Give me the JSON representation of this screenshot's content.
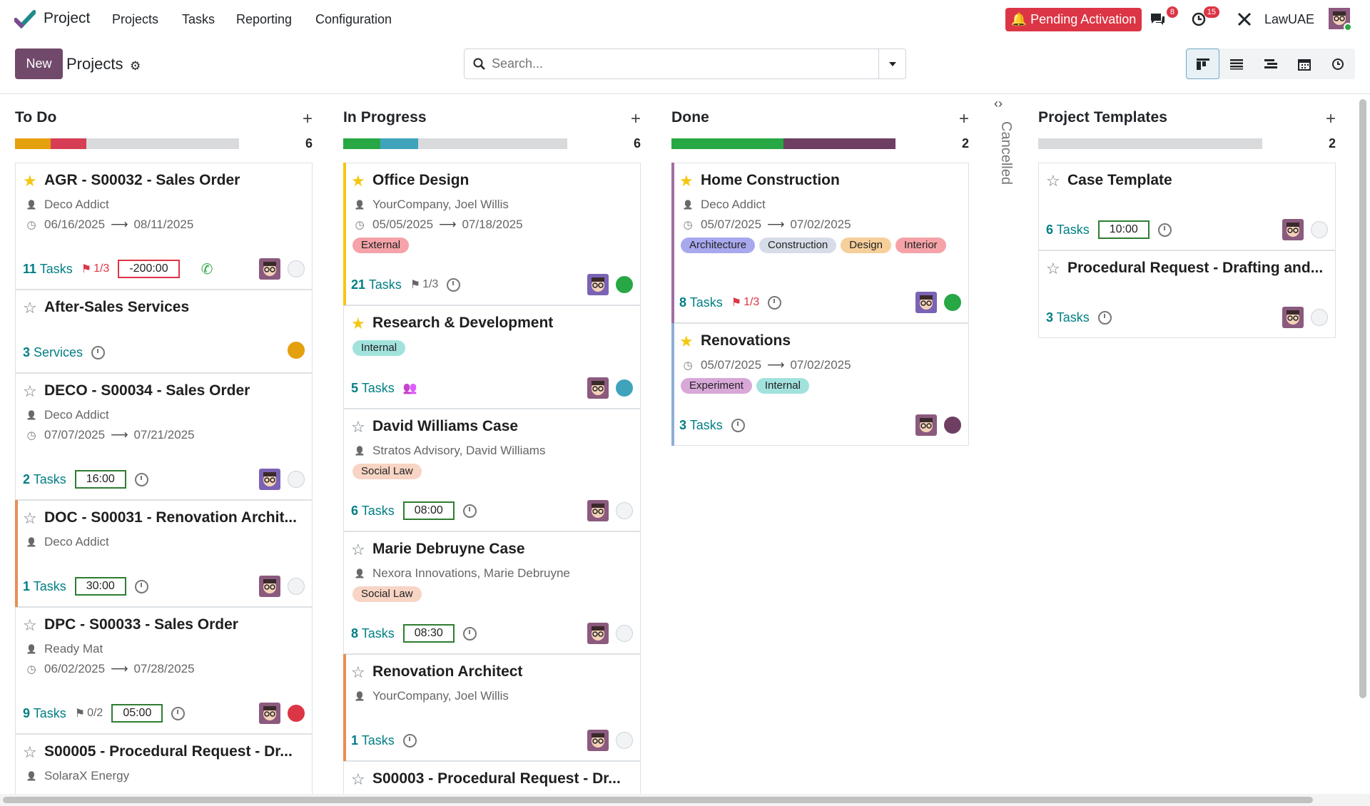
{
  "navbar": {
    "app_name": "Project",
    "menu": [
      "Projects",
      "Tasks",
      "Reporting",
      "Configuration"
    ],
    "pending": "Pending Activation",
    "messages_count": "8",
    "activities_count": "15",
    "company": "LawUAE"
  },
  "control": {
    "new_label": "New",
    "breadcrumb": "Projects",
    "search_placeholder": "Search..."
  },
  "columns": [
    {
      "title": "To Do",
      "count": "6",
      "progress": [
        {
          "pct": 0.16,
          "color": "#e5a00d"
        },
        {
          "pct": 0.16,
          "color": "#d63d55"
        }
      ],
      "cards": [
        {
          "starred": true,
          "title": "AGR - S00032 - Sales Order",
          "partner": "Deco Addict",
          "dates": "06/16/2025",
          "date_end": "08/11/2025",
          "tasks": "11",
          "task_word": "Tasks",
          "milestone": "1/3",
          "hours": "-200:00",
          "status": "grey",
          "phone": true
        },
        {
          "starred": false,
          "title": "After-Sales Services",
          "tasks": "3",
          "task_word": "Services",
          "status": "orange"
        },
        {
          "starred": false,
          "title": "DECO - S00034 - Sales Order",
          "partner": "Deco Addict",
          "dates": "07/07/2025",
          "date_end": "07/21/2025",
          "tasks": "2",
          "task_word": "Tasks",
          "hours": "16:00",
          "status": "grey"
        },
        {
          "starred": false,
          "title": "DOC - S00031 - Renovation Archit...",
          "partner": "Deco Addict",
          "tasks": "1",
          "task_word": "Tasks",
          "hours": "30:00",
          "status": "grey"
        },
        {
          "starred": false,
          "title": "DPC - S00033 - Sales Order",
          "partner": "Ready Mat",
          "dates": "06/02/2025",
          "date_end": "07/28/2025",
          "tasks": "9",
          "task_word": "Tasks",
          "milestone": "0/2",
          "hours": "05:00",
          "status": "red"
        },
        {
          "starred": false,
          "title": "S00005 - Procedural Request - Dr...",
          "partner": "SolaraX Energy"
        }
      ]
    },
    {
      "title": "In Progress",
      "count": "6",
      "progress": [
        {
          "pct": 0.165,
          "color": "#28a745"
        },
        {
          "pct": 0.17,
          "color": "#3fa3bc"
        }
      ],
      "cards": [
        {
          "starred": true,
          "title": "Office Design",
          "partner": "YourCompany, Joel Willis",
          "dates": "05/05/2025",
          "date_end": "07/18/2025",
          "tags": [
            "External"
          ],
          "tasks": "21",
          "task_word": "Tasks",
          "milestone": "1/3",
          "status": "green"
        },
        {
          "starred": true,
          "title": "Research & Development",
          "tags": [
            "Internal"
          ],
          "tasks": "5",
          "task_word": "Tasks",
          "status": "teal"
        },
        {
          "starred": false,
          "title": "David Williams Case",
          "partner": "Stratos Advisory, David Williams",
          "tags": [
            "Social Law"
          ],
          "tasks": "6",
          "task_word": "Tasks",
          "hours": "08:00",
          "status": "grey"
        },
        {
          "starred": false,
          "title": "Marie Debruyne Case",
          "partner": "Nexora Innovations, Marie Debruyne",
          "tags": [
            "Social Law"
          ],
          "tasks": "8",
          "task_word": "Tasks",
          "hours": "08:30",
          "status": "grey"
        },
        {
          "starred": false,
          "title": "Renovation Architect",
          "partner": "YourCompany, Joel Willis",
          "tasks": "1",
          "task_word": "Tasks",
          "status": "grey"
        },
        {
          "starred": false,
          "title": "S00003 - Procedural Request - Dr..."
        }
      ]
    },
    {
      "title": "Done",
      "count": "2",
      "progress": [
        {
          "pct": 0.5,
          "color": "#28a745"
        },
        {
          "pct": 0.5,
          "color": "#6e3f62"
        }
      ],
      "cards": [
        {
          "starred": true,
          "title": "Home Construction",
          "partner": "Deco Addict",
          "dates": "05/07/2025",
          "date_end": "07/02/2025",
          "tags": [
            "Architecture",
            "Construction",
            "Design",
            "Interior"
          ],
          "tasks": "8",
          "task_word": "Tasks",
          "milestone": "1/3",
          "status": "green"
        },
        {
          "starred": true,
          "title": "Renovations",
          "dates": "05/07/2025",
          "date_end": "07/02/2025",
          "tags": [
            "Experiment",
            "Internal"
          ],
          "tasks": "3",
          "task_word": "Tasks",
          "status": "purple"
        }
      ]
    },
    {
      "title": "Project Templates",
      "count": "2",
      "cards": [
        {
          "starred": false,
          "title": "Case Template",
          "tasks": "6",
          "task_word": "Tasks",
          "hours": "10:00",
          "status": "grey"
        },
        {
          "starred": false,
          "title": "Procedural Request - Drafting and...",
          "tasks": "3",
          "task_word": "Tasks",
          "status": "grey"
        }
      ]
    }
  ],
  "cancelled": "Cancelled",
  "colors": {
    "primary": "#71496a",
    "link": "#017e84",
    "danger": "#dc3545"
  }
}
